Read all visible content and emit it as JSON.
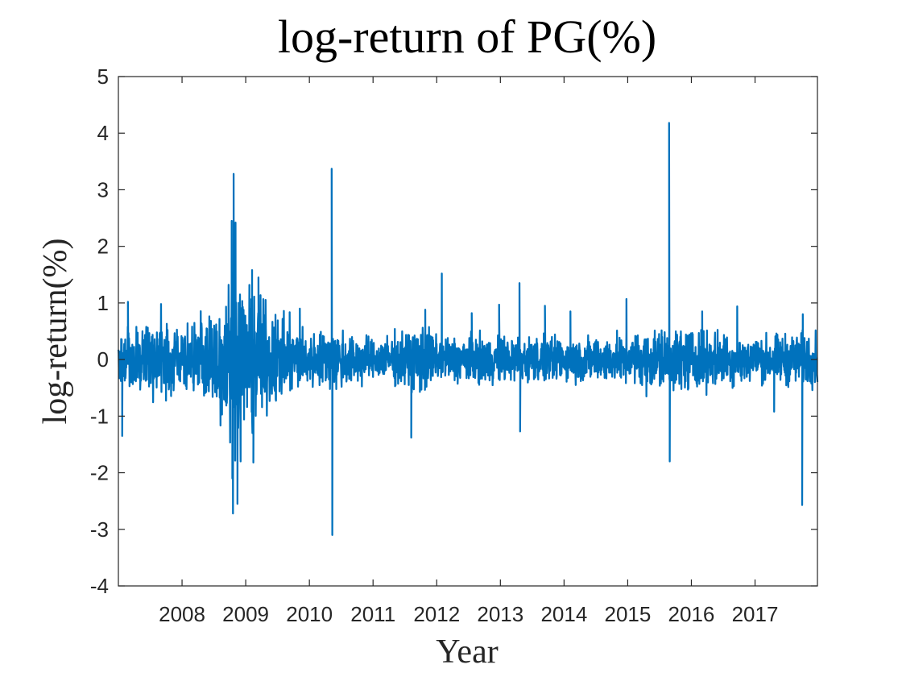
{
  "chart_data": {
    "type": "line",
    "title": "log-return of PG(%)",
    "xlabel": "Year",
    "ylabel": "log-return(%)",
    "ylim": [
      -4,
      5
    ],
    "yticks": [
      -4,
      -3,
      -2,
      -1,
      0,
      1,
      2,
      3,
      4,
      5
    ],
    "yticklabels": [
      "-4",
      "-3",
      "-2",
      "-1",
      "0",
      "1",
      "2",
      "3",
      "4",
      "5"
    ],
    "xlim": [
      2007.0,
      2017.98
    ],
    "xticks": [
      2008,
      2009,
      2010,
      2011,
      2012,
      2013,
      2014,
      2015,
      2016,
      2017
    ],
    "xticklabels": [
      "2008",
      "2009",
      "2010",
      "2011",
      "2012",
      "2013",
      "2014",
      "2015",
      "2016",
      "2017"
    ],
    "grid": false,
    "legend": "none",
    "series": [
      {
        "color": "#0072BD",
        "noise": [
          [
            2007.0,
            0.35
          ],
          [
            2007.5,
            0.45
          ],
          [
            2008.0,
            0.4
          ],
          [
            2008.5,
            0.55
          ],
          [
            2008.75,
            1.0
          ],
          [
            2009.0,
            0.95
          ],
          [
            2009.3,
            0.7
          ],
          [
            2009.6,
            0.5
          ],
          [
            2010.0,
            0.35
          ],
          [
            2010.5,
            0.4
          ],
          [
            2011.0,
            0.25
          ],
          [
            2011.5,
            0.35
          ],
          [
            2011.8,
            0.45
          ],
          [
            2012.0,
            0.3
          ],
          [
            2013.0,
            0.3
          ],
          [
            2014.0,
            0.28
          ],
          [
            2015.0,
            0.3
          ],
          [
            2015.5,
            0.42
          ],
          [
            2016.0,
            0.38
          ],
          [
            2017.0,
            0.3
          ],
          [
            2017.98,
            0.35
          ]
        ],
        "spikes": [
          {
            "x": 2007.06,
            "y": -1.35
          },
          {
            "x": 2007.15,
            "y": 1.02
          },
          {
            "x": 2007.67,
            "y": 0.98
          },
          {
            "x": 2008.78,
            "y": 2.45
          },
          {
            "x": 2008.79,
            "y": -2.1
          },
          {
            "x": 2008.8,
            "y": -2.72
          },
          {
            "x": 2008.81,
            "y": 3.28
          },
          {
            "x": 2008.84,
            "y": 2.42
          },
          {
            "x": 2008.87,
            "y": -2.55
          },
          {
            "x": 2008.92,
            "y": -1.8
          },
          {
            "x": 2009.1,
            "y": 1.58
          },
          {
            "x": 2009.12,
            "y": -1.82
          },
          {
            "x": 2009.2,
            "y": 1.45
          },
          {
            "x": 2009.1,
            "y": -1.0
          },
          {
            "x": 2009.85,
            "y": 0.9
          },
          {
            "x": 2010.35,
            "y": 3.37
          },
          {
            "x": 2010.36,
            "y": -3.1
          },
          {
            "x": 2011.6,
            "y": -1.38
          },
          {
            "x": 2011.82,
            "y": 0.88
          },
          {
            "x": 2012.08,
            "y": 1.52
          },
          {
            "x": 2012.55,
            "y": 0.82
          },
          {
            "x": 2012.98,
            "y": 0.97
          },
          {
            "x": 2013.3,
            "y": 1.35
          },
          {
            "x": 2013.31,
            "y": -1.27
          },
          {
            "x": 2013.7,
            "y": 0.95
          },
          {
            "x": 2014.1,
            "y": 0.85
          },
          {
            "x": 2014.98,
            "y": 1.07
          },
          {
            "x": 2015.65,
            "y": 4.18
          },
          {
            "x": 2015.66,
            "y": -1.8
          },
          {
            "x": 2016.17,
            "y": 0.85
          },
          {
            "x": 2016.72,
            "y": 0.94
          },
          {
            "x": 2017.3,
            "y": -0.92
          },
          {
            "x": 2017.74,
            "y": -2.57
          },
          {
            "x": 2017.75,
            "y": 0.8
          }
        ]
      }
    ]
  }
}
